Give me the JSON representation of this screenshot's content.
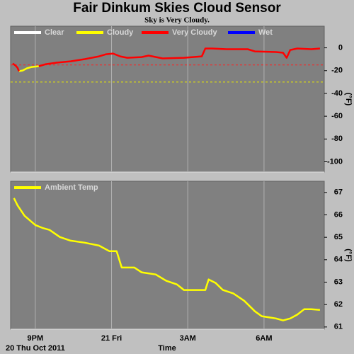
{
  "header": {
    "title": "Fair Dinkum Skies Cloud Sensor",
    "subtitle": "Sky is Very Cloudy."
  },
  "chart_data": [
    {
      "type": "line",
      "y_label": "(°F)",
      "xlim": [
        20.03,
        32.37
      ],
      "ylim": [
        -109,
        19
      ],
      "xticks": [
        21,
        24,
        27,
        30
      ],
      "yticks": [
        0,
        -20,
        -40,
        -60,
        -80,
        -100
      ],
      "grid": "x",
      "background": "#808080",
      "thresholds": [
        {
          "value": -15,
          "color": "#ff2020"
        },
        {
          "value": -30,
          "color": "#e8e800"
        }
      ],
      "series": [
        {
          "name": "Clear",
          "color": "#ffffff",
          "x": [],
          "values": []
        },
        {
          "name": "Cloudy",
          "color": "#ffff00",
          "x": [
            20.36,
            20.5,
            20.67,
            20.86,
            21.14
          ],
          "values": [
            -20.5,
            -19.9,
            -18,
            -16.8,
            -16.1
          ]
        },
        {
          "name": "Very Cloudy",
          "color": "#ff0000",
          "x": [
            20.11,
            20.22,
            20.3,
            20.36,
            20.5,
            21.14,
            21.42,
            21.84,
            22.39,
            22.95,
            23.51,
            23.79,
            24.06,
            24.34,
            24.62,
            25.18,
            25.46,
            26.01,
            26.85,
            27.55,
            27.69,
            27.96,
            28.52,
            29.36,
            29.64,
            30.47,
            30.75,
            30.89,
            31.03,
            31.31,
            31.86,
            32.2
          ],
          "values": [
            -13.7,
            -15.5,
            -17.4,
            -20.5,
            null,
            -16.1,
            -14.3,
            -13,
            -11.8,
            -9.9,
            -7.5,
            -5.6,
            -5,
            -7.5,
            -8.7,
            -8.1,
            -6.8,
            -9.3,
            -8.7,
            -7.5,
            -0.6,
            -0.6,
            -1.2,
            -1.2,
            -3.1,
            -3.7,
            -4.3,
            -8.7,
            -1.9,
            -0.6,
            -1.2,
            -0.6
          ]
        },
        {
          "name": "Wet",
          "color": "#0000ff",
          "x": [],
          "values": []
        }
      ]
    },
    {
      "type": "line",
      "y_label": "(°F)",
      "x_label": "Time",
      "date_label": "20 Thu Oct 2011",
      "xlim": [
        20.03,
        32.37
      ],
      "ylim": [
        60.9,
        67.5
      ],
      "xticks": [
        {
          "value": 21,
          "label": "9PM"
        },
        {
          "value": 24,
          "label": "21 Fri"
        },
        {
          "value": 27,
          "label": "3AM"
        },
        {
          "value": 30,
          "label": "6AM"
        }
      ],
      "yticks": [
        61,
        62,
        63,
        64,
        65,
        66,
        67
      ],
      "grid": "x",
      "background": "#808080",
      "series": [
        {
          "name": "Ambient Temp",
          "color": "#ffff00",
          "x": [
            20.16,
            20.3,
            20.58,
            21,
            21.28,
            21.56,
            21.97,
            22.39,
            22.95,
            23.51,
            23.92,
            24.2,
            24.4,
            24.9,
            25.18,
            25.74,
            26.15,
            26.57,
            26.85,
            27.69,
            27.82,
            28.1,
            28.38,
            28.8,
            29.22,
            29.64,
            29.91,
            30.47,
            30.75,
            31.03,
            31.31,
            31.58,
            31.86,
            32.2
          ],
          "values": [
            66.75,
            66.43,
            65.96,
            65.55,
            65.42,
            65.33,
            65.01,
            64.85,
            64.76,
            64.63,
            64.38,
            64.38,
            63.65,
            63.65,
            63.44,
            63.34,
            63.06,
            62.9,
            62.65,
            62.65,
            63.12,
            62.96,
            62.65,
            62.49,
            62.17,
            61.7,
            61.48,
            61.38,
            61.29,
            61.38,
            61.55,
            61.79,
            61.79,
            61.76
          ]
        }
      ]
    }
  ]
}
